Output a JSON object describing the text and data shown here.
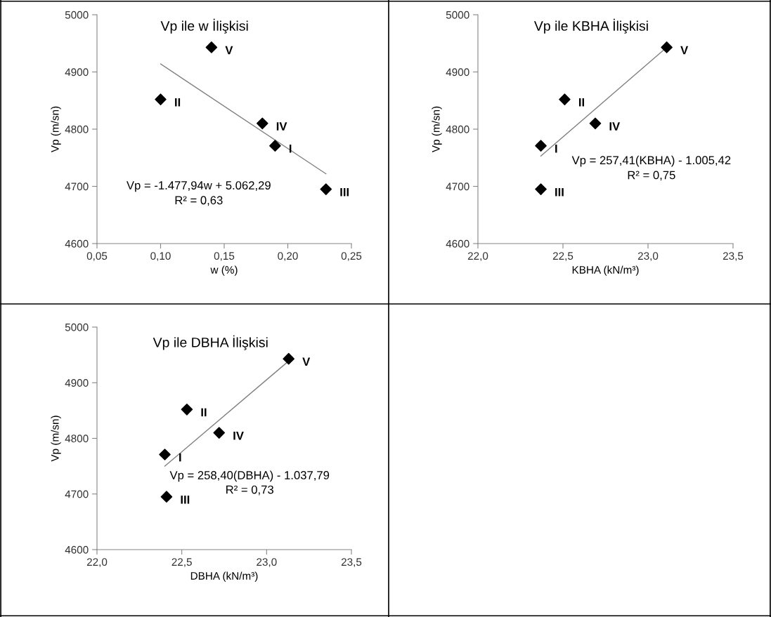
{
  "chart_data": [
    {
      "type": "scatter",
      "title": "Vp ile w İlişkisi",
      "xlabel": "w (%)",
      "ylabel": "Vp (m/sn)",
      "xlim": [
        0.05,
        0.25
      ],
      "xticks": [
        {
          "value": 0.05,
          "label": "0,05"
        },
        {
          "value": 0.1,
          "label": "0,10"
        },
        {
          "value": 0.15,
          "label": "0,15"
        },
        {
          "value": 0.2,
          "label": "0,20"
        },
        {
          "value": 0.25,
          "label": "0,25"
        }
      ],
      "ylim": [
        4600,
        5000
      ],
      "yticks": [
        4600,
        4700,
        4800,
        4900,
        5000
      ],
      "grid": false,
      "legend": false,
      "marker": "diamond",
      "series": [
        {
          "color": "#000000",
          "x": [
            0.19,
            0.1,
            0.23,
            0.18,
            0.14
          ],
          "values": [
            4771,
            4852,
            4695,
            4810,
            4943
          ]
        },
        {
          "type": "line",
          "color": "#808080",
          "marker": "none",
          "x": [
            0.1,
            0.23
          ],
          "values": [
            4914,
            4722
          ]
        }
      ],
      "annotations": [
        {
          "text": "I",
          "x": 0.19,
          "y": 4771
        },
        {
          "text": "II",
          "x": 0.1,
          "y": 4852
        },
        {
          "text": "III",
          "x": 0.23,
          "y": 4695
        },
        {
          "text": "IV",
          "x": 0.18,
          "y": 4810
        },
        {
          "text": "V",
          "x": 0.14,
          "y": 4943
        },
        "Vp = -1.477,94w + 5.062,29",
        "R² = 0,63"
      ]
    },
    {
      "type": "scatter",
      "title": "Vp ile KBHA İlişkisi",
      "xlabel": "KBHA (kN/m³)",
      "ylabel": "Vp (m/sn)",
      "xlim": [
        22.0,
        23.5
      ],
      "xticks": [
        {
          "value": 22.0,
          "label": "22,0"
        },
        {
          "value": 22.5,
          "label": "22,5"
        },
        {
          "value": 23.0,
          "label": "23,0"
        },
        {
          "value": 23.5,
          "label": "23,5"
        }
      ],
      "ylim": [
        4600,
        5000
      ],
      "yticks": [
        4600,
        4700,
        4800,
        4900,
        5000
      ],
      "grid": false,
      "legend": false,
      "marker": "diamond",
      "series": [
        {
          "color": "#000000",
          "x": [
            22.37,
            22.51,
            22.37,
            22.69,
            23.11
          ],
          "values": [
            4771,
            4852,
            4695,
            4810,
            4943
          ]
        },
        {
          "type": "line",
          "color": "#808080",
          "marker": "none",
          "x": [
            22.37,
            23.11
          ],
          "values": [
            4753,
            4943
          ]
        }
      ],
      "annotations": [
        {
          "text": "I",
          "x": 22.37,
          "y": 4771
        },
        {
          "text": "II",
          "x": 22.51,
          "y": 4852
        },
        {
          "text": "III",
          "x": 22.37,
          "y": 4695
        },
        {
          "text": "IV",
          "x": 22.69,
          "y": 4810
        },
        {
          "text": "V",
          "x": 23.11,
          "y": 4943
        },
        "Vp = 257,41(KBHA) - 1.005,42",
        "R² = 0,75"
      ]
    },
    {
      "type": "scatter",
      "title": "Vp ile DBHA İlişkisi",
      "xlabel": "DBHA (kN/m³)",
      "ylabel": "Vp (m/sn)",
      "xlim": [
        22.0,
        23.5
      ],
      "xticks": [
        {
          "value": 22.0,
          "label": "22,0"
        },
        {
          "value": 22.5,
          "label": "22,5"
        },
        {
          "value": 23.0,
          "label": "23,0"
        },
        {
          "value": 23.5,
          "label": "23,5"
        }
      ],
      "ylim": [
        4600,
        5000
      ],
      "yticks": [
        4600,
        4700,
        4800,
        4900,
        5000
      ],
      "grid": false,
      "legend": false,
      "marker": "diamond",
      "series": [
        {
          "color": "#000000",
          "x": [
            22.4,
            22.53,
            22.41,
            22.72,
            23.13
          ],
          "values": [
            4771,
            4852,
            4695,
            4810,
            4943
          ]
        },
        {
          "type": "line",
          "color": "#808080",
          "marker": "none",
          "x": [
            22.4,
            23.13
          ],
          "values": [
            4750,
            4939
          ]
        }
      ],
      "annotations": [
        {
          "text": "I",
          "x": 22.4,
          "y": 4771
        },
        {
          "text": "II",
          "x": 22.53,
          "y": 4852
        },
        {
          "text": "III",
          "x": 22.41,
          "y": 4695
        },
        {
          "text": "IV",
          "x": 22.72,
          "y": 4810
        },
        {
          "text": "V",
          "x": 23.13,
          "y": 4943
        },
        "Vp = 258,40(DBHA) - 1.037,79",
        "R² = 0,73"
      ]
    }
  ]
}
